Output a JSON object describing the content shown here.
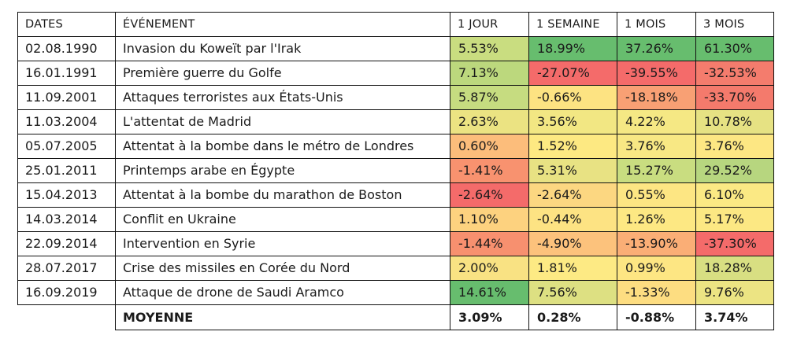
{
  "headers": [
    "DATES",
    "ÉVÉNEMENT",
    "1 JOUR",
    "1 SEMAINE",
    "1 MOIS",
    "3 MOIS"
  ],
  "rows": [
    {
      "date": "02.08.1990",
      "event": "Invasion du Koweït par l'Irak",
      "v": [
        "5.53%",
        "18.99%",
        "37.26%",
        "61.30%"
      ],
      "c": [
        "#c9dd80",
        "#67bd6e",
        "#67bd6e",
        "#67bd6e"
      ]
    },
    {
      "date": "16.01.1991",
      "event": "Première guerre du Golfe",
      "v": [
        "7.13%",
        "-27.07%",
        "-39.55%",
        "-32.53%"
      ],
      "c": [
        "#bcd87d",
        "#f46b6a",
        "#f46b6a",
        "#f47c6d"
      ]
    },
    {
      "date": "11.09.2001",
      "event": "Attaques terroristes aux États-Unis",
      "v": [
        "5.87%",
        "-0.66%",
        "-18.18%",
        "-33.70%"
      ],
      "c": [
        "#c6dc80",
        "#fde382",
        "#f8a074",
        "#f47a6c"
      ]
    },
    {
      "date": "11.03.2004",
      "event": "L'attentat de Madrid",
      "v": [
        "2.63%",
        "3.56%",
        "4.22%",
        "10.78%"
      ],
      "c": [
        "#ebe382",
        "#f2e783",
        "#f5e884",
        "#e6e283"
      ]
    },
    {
      "date": "05.07.2005",
      "event": "Attentat à la bombe dans le métro de Londres",
      "v": [
        "0.60%",
        "1.52%",
        "3.76%",
        "3.76%"
      ],
      "c": [
        "#fcbd7b",
        "#fde982",
        "#f8e884",
        "#fde783"
      ]
    },
    {
      "date": "25.01.2011",
      "event": "Printemps arabe en Égypte",
      "v": [
        "-1.41%",
        "5.31%",
        "15.27%",
        "29.52%"
      ],
      "c": [
        "#f8926f",
        "#e8e283",
        "#c9dd80",
        "#b7d67f"
      ]
    },
    {
      "date": "15.04.2013",
      "event": "Attentat à la bombe du marathon de Boston",
      "v": [
        "-2.64%",
        "-2.64%",
        "0.55%",
        "6.10%"
      ],
      "c": [
        "#f46b6a",
        "#fcd781",
        "#fde683",
        "#fbe984"
      ]
    },
    {
      "date": "14.03.2014",
      "event": "Conflit en Ukraine",
      "v": [
        "1.10%",
        "-0.44%",
        "1.26%",
        "5.17%"
      ],
      "c": [
        "#fdd27f",
        "#fde383",
        "#fde883",
        "#fce883"
      ]
    },
    {
      "date": "22.09.2014",
      "event": "Intervention en Syrie",
      "v": [
        "-1.44%",
        "-4.90%",
        "-13.90%",
        "-37.30%"
      ],
      "c": [
        "#f7906f",
        "#fcc27c",
        "#faae76",
        "#f46b6a"
      ]
    },
    {
      "date": "28.07.2017",
      "event": "Crise des missiles en Corée du Nord",
      "v": [
        "2.00%",
        "1.81%",
        "0.99%",
        "18.28%"
      ],
      "c": [
        "#f9e283",
        "#fdea84",
        "#fde683",
        "#d8df82"
      ]
    },
    {
      "date": "16.09.2019",
      "event": "Attaque de drone de Saudi Aramco",
      "v": [
        "14.61%",
        "7.56%",
        "-1.33%",
        "9.76%"
      ],
      "c": [
        "#67bd6e",
        "#dde082",
        "#fddd81",
        "#ece483"
      ]
    }
  ],
  "average": {
    "label": "MOYENNE",
    "v": [
      "3.09%",
      "0.28%",
      "-0.88%",
      "3.74%"
    ]
  }
}
